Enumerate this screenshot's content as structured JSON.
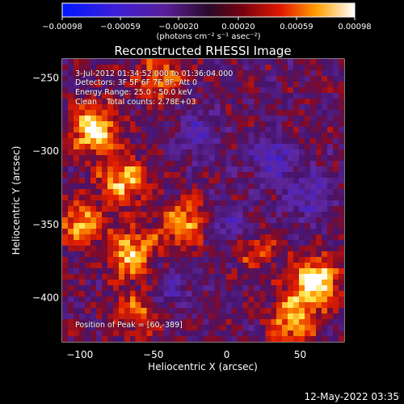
{
  "chart_data": {
    "type": "heatmap",
    "title": "Reconstructed RHESSI Image",
    "xlabel": "Heliocentric X (arcsec)",
    "ylabel": "Heliocentric Y (arcsec)",
    "xlim": [
      -112,
      80
    ],
    "ylim": [
      -430,
      -237
    ],
    "x_ticks": [
      -100,
      -50,
      0,
      50
    ],
    "x_tick_labels": [
      "−100",
      "−50",
      "0",
      "50"
    ],
    "y_ticks": [
      -250,
      -300,
      -350,
      -400
    ],
    "y_tick_labels": [
      "−250",
      "−300",
      "−350",
      "−400"
    ],
    "colorbar": {
      "range": [
        -0.00098,
        0.00098
      ],
      "ticks": [
        -0.00098,
        -0.00059,
        -0.0002,
        0.0002,
        0.00059,
        0.00098
      ],
      "tick_labels": [
        "−0.00098",
        "−0.00059",
        "−0.00020",
        "0.00020",
        "0.00059",
        "0.00098"
      ],
      "unit_label": "(photons cm⁻² s⁻¹ asec⁻²)",
      "colormap": "blue-purple-red-yellow-white"
    },
    "annotations": [
      "3-Jul-2012 01:34:52.000 to 01:36:04.000",
      "Detectors: 3F 5F 6F 7F 8F, Att 0",
      "Energy Range: 25.0 - 50.0 keV",
      "Clean    Total counts: 2.78E+03"
    ],
    "peak_label": "Position of Peak = [60,-389]",
    "peak_position": [
      60,
      -389
    ],
    "bright_regions": [
      {
        "x": -90,
        "y": -285,
        "level": 0.95
      },
      {
        "x": -70,
        "y": -320,
        "level": 0.75
      },
      {
        "x": -100,
        "y": -350,
        "level": 0.7
      },
      {
        "x": -65,
        "y": -370,
        "level": 0.8
      },
      {
        "x": -30,
        "y": -350,
        "level": 0.75
      },
      {
        "x": 15,
        "y": -365,
        "level": 0.6
      },
      {
        "x": 60,
        "y": -389,
        "level": 1.0
      },
      {
        "x": 45,
        "y": -415,
        "level": 0.7
      },
      {
        "x": -45,
        "y": -250,
        "level": 0.55
      },
      {
        "x": -60,
        "y": -410,
        "level": 0.55
      }
    ],
    "dark_regions": [
      {
        "x": 5,
        "y": -355,
        "level": -0.6
      },
      {
        "x": 30,
        "y": -305,
        "level": -0.5
      },
      {
        "x": -20,
        "y": -290,
        "level": -0.4
      },
      {
        "x": 55,
        "y": -330,
        "level": -0.45
      },
      {
        "x": -40,
        "y": -395,
        "level": -0.35
      }
    ]
  },
  "footer": {
    "date": "12-May-2022 03:35"
  }
}
